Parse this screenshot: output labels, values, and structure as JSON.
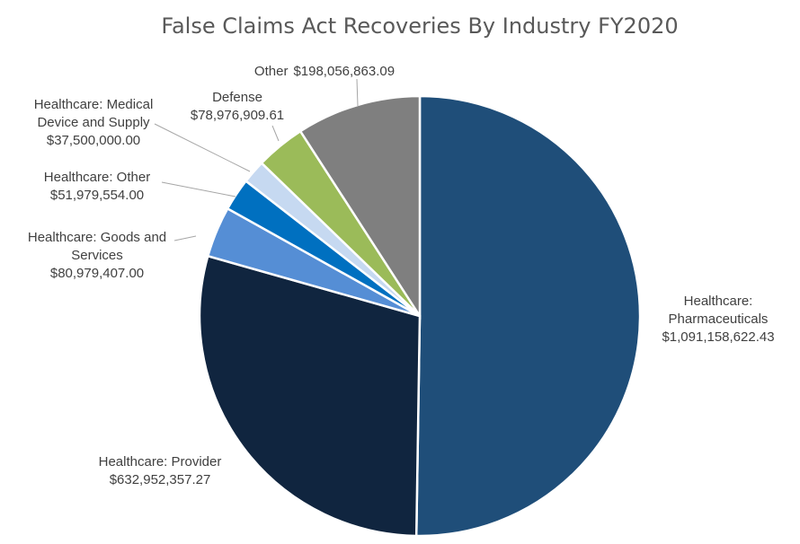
{
  "chart_data": {
    "type": "pie",
    "title": "False Claims Act Recoveries By Industry FY2020",
    "start_angle_deg": 0,
    "direction": "clockwise",
    "slices": [
      {
        "key": "pharma",
        "label_lines": [
          "Healthcare:",
          "Pharmaceuticals"
        ],
        "value_text": "$1,091,158,622.43",
        "value": 1091158622.43,
        "color": "#1f4e79"
      },
      {
        "key": "provider",
        "label_lines": [
          "Healthcare: Provider"
        ],
        "value_text": "$632,952,357.27",
        "value": 632952357.27,
        "color": "#10253f"
      },
      {
        "key": "goods",
        "label_lines": [
          "Healthcare: Goods and",
          "Services"
        ],
        "value_text": "$80,979,407.00",
        "value": 80979407.0,
        "color": "#558ed5"
      },
      {
        "key": "hcother",
        "label_lines": [
          "Healthcare: Other"
        ],
        "value_text": "$51,979,554.00",
        "value": 51979554.0,
        "color": "#0070c0"
      },
      {
        "key": "device",
        "label_lines": [
          "Healthcare: Medical",
          "Device and Supply"
        ],
        "value_text": "$37,500,000.00",
        "value": 37500000.0,
        "color": "#c6d9f1"
      },
      {
        "key": "defense",
        "label_lines": [
          "Defense"
        ],
        "value_text": "$78,976,909.61",
        "value": 78976909.61,
        "color": "#9bbb59"
      },
      {
        "key": "other",
        "label_lines": [
          "Other"
        ],
        "value_text": "$198,056,863.09",
        "value": 198056863.09,
        "color": "#7f7f7f"
      }
    ],
    "legend": "none",
    "data_labels": "outside-with-leader-lines"
  }
}
